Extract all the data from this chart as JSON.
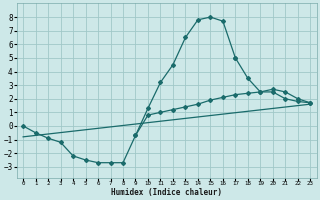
{
  "xlabel": "Humidex (Indice chaleur)",
  "bg_color": "#cde8e8",
  "grid_color": "#a0c8c8",
  "line_color": "#1a6b6b",
  "xlim": [
    -0.5,
    23.5
  ],
  "ylim": [
    -3.8,
    9.0
  ],
  "xticks": [
    0,
    1,
    2,
    3,
    4,
    5,
    6,
    7,
    8,
    9,
    10,
    11,
    12,
    13,
    14,
    15,
    16,
    17,
    18,
    19,
    20,
    21,
    22,
    23
  ],
  "yticks": [
    -3,
    -2,
    -1,
    0,
    1,
    2,
    3,
    4,
    5,
    6,
    7,
    8
  ],
  "upper_curve_x": [
    0,
    1,
    2,
    3,
    4,
    5,
    6,
    7,
    8,
    9,
    10,
    11,
    12,
    13,
    14,
    15,
    16,
    17
  ],
  "upper_curve_y": [
    0.0,
    -0.5,
    -0.9,
    -1.2,
    -2.2,
    -2.5,
    -2.7,
    -2.7,
    -2.7,
    -0.7,
    1.3,
    3.2,
    4.5,
    6.5,
    7.8,
    8.0,
    7.7,
    5.0
  ],
  "right_upper_x": [
    17,
    18,
    19,
    20,
    21,
    22,
    23
  ],
  "right_upper_y": [
    5.0,
    3.5,
    2.5,
    2.7,
    2.5,
    2.0,
    1.7
  ],
  "bottom_curve_x": [
    9,
    10,
    11,
    12,
    13,
    14,
    15,
    16,
    17,
    18,
    19,
    20,
    21,
    22,
    23
  ],
  "bottom_curve_y": [
    -0.7,
    0.8,
    1.0,
    1.2,
    1.4,
    1.6,
    1.9,
    2.1,
    2.3,
    2.4,
    2.5,
    2.5,
    2.0,
    1.8,
    1.7
  ],
  "trend_x": [
    0,
    23
  ],
  "trend_y": [
    -0.8,
    1.6
  ]
}
